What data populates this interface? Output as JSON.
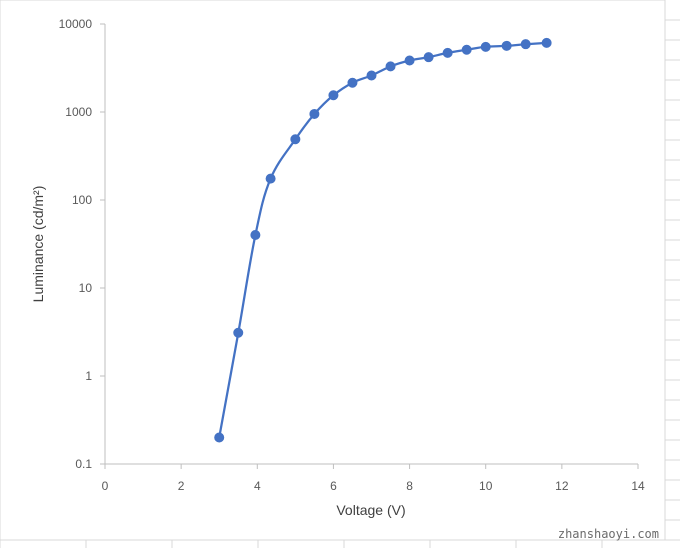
{
  "chart_data": {
    "type": "line",
    "xlabel": "Voltage (V)",
    "ylabel": "Luminance (cd/m²)",
    "x_scale": "linear",
    "y_scale": "log",
    "xlim": [
      0,
      14
    ],
    "ylim": [
      0.1,
      10000
    ],
    "x_ticks": [
      "0",
      "2",
      "4",
      "6",
      "8",
      "10",
      "12",
      "14"
    ],
    "y_ticks": [
      "0.1",
      "1",
      "10",
      "100",
      "1000",
      "10000"
    ],
    "legend": "none",
    "series": [
      {
        "color": "#4472c4",
        "marker": "circle",
        "smooth": true,
        "points": [
          [
            3.0,
            0.2
          ],
          [
            3.5,
            3.1
          ],
          [
            3.95,
            40
          ],
          [
            4.35,
            175
          ],
          [
            5.0,
            490
          ],
          [
            5.5,
            950
          ],
          [
            6.0,
            1550
          ],
          [
            6.5,
            2150
          ],
          [
            7.0,
            2600
          ],
          [
            7.5,
            3300
          ],
          [
            8.0,
            3850
          ],
          [
            8.5,
            4200
          ],
          [
            9.0,
            4700
          ],
          [
            9.5,
            5100
          ],
          [
            10.0,
            5500
          ],
          [
            10.55,
            5650
          ],
          [
            11.05,
            5900
          ],
          [
            11.6,
            6100
          ]
        ]
      }
    ]
  },
  "watermark": "zhanshaoyi.com"
}
